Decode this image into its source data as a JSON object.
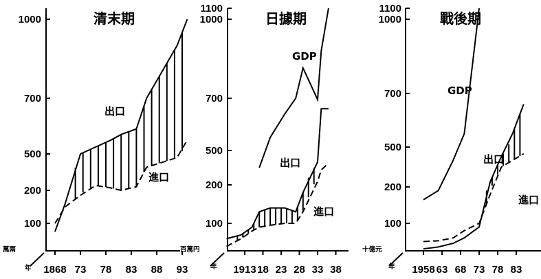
{
  "chart_data": [
    {
      "type": "line",
      "title": "清末期",
      "ylabel": "萬兩",
      "xlabel": "年",
      "yscale": "broken",
      "y_ticks": [
        100,
        200,
        500,
        700,
        1000
      ],
      "x_ticks": [
        "1868",
        "73",
        "78",
        "83",
        "88",
        "93"
      ],
      "x": [
        1868,
        1870,
        1873,
        1876,
        1879,
        1881,
        1884,
        1886,
        1889,
        1892,
        1894
      ],
      "series": [
        {
          "name": "出口",
          "style": "solid",
          "values": [
            75,
            160,
            500,
            525,
            550,
            570,
            590,
            700,
            800,
            900,
            1000
          ]
        },
        {
          "name": "進口",
          "style": "dashed",
          "values": [
            100,
            150,
            185,
            240,
            220,
            200,
            230,
            390,
            430,
            470,
            550
          ]
        }
      ],
      "hatch_between": [
        "出口",
        "進口"
      ],
      "hatch_range": [
        1872,
        1893
      ]
    },
    {
      "type": "line",
      "title": "日據期",
      "ylabel": "百萬円",
      "xlabel": "年",
      "yscale": "broken",
      "y_ticks": [
        100,
        200,
        500,
        700,
        1000,
        1100
      ],
      "x_ticks": [
        "1913",
        "18",
        "23",
        "28",
        "33",
        "38"
      ],
      "x": [
        1908,
        1912,
        1915,
        1917,
        1920,
        1924,
        1927,
        1929,
        1933,
        1934,
        1936
      ],
      "series": [
        {
          "name": "GDP",
          "values": [
            null,
            null,
            null,
            350,
            550,
            640,
            700,
            815,
            695,
            880,
            1100
          ]
        },
        {
          "name": "出口",
          "style": "solid",
          "values": [
            60,
            70,
            90,
            130,
            140,
            140,
            130,
            180,
            400,
            660,
            660
          ]
        },
        {
          "name": "進口",
          "style": "dashed",
          "values": [
            40,
            60,
            80,
            90,
            95,
            100,
            100,
            130,
            230,
            330,
            390
          ]
        }
      ],
      "hatch_between": [
        "出口",
        "進口"
      ],
      "hatch_range": [
        1911,
        1933
      ]
    },
    {
      "type": "line",
      "title": "戰後期",
      "ylabel": "十億元",
      "xlabel": "年",
      "yscale": "broken",
      "y_ticks": [
        100,
        200,
        500,
        700,
        1000,
        1100
      ],
      "x_ticks": [
        "1958",
        "63",
        "68",
        "73",
        "78",
        "83"
      ],
      "x": [
        1958,
        1962,
        1966,
        1969,
        1973,
        1976,
        1979,
        1982,
        1985
      ],
      "series": [
        {
          "name": "GDP",
          "values": [
            165,
            190,
            400,
            550,
            1100,
            null,
            null,
            null,
            null
          ]
        },
        {
          "name": "出口",
          "style": "solid",
          "values": [
            30,
            35,
            45,
            60,
            90,
            240,
            430,
            550,
            660
          ]
        },
        {
          "name": "進口",
          "style": "dashed",
          "values": [
            50,
            52,
            60,
            80,
            100,
            180,
            350,
            400,
            450
          ]
        }
      ],
      "hatch_between": [
        "出口",
        "進口"
      ],
      "hatch_range": [
        1975,
        1985
      ]
    }
  ]
}
